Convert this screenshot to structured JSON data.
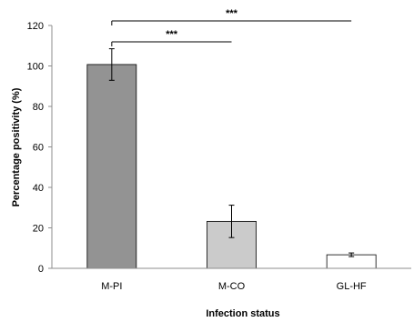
{
  "chart_data": {
    "type": "bar",
    "title": "",
    "xlabel": "Infection status",
    "ylabel": "Percentage positivity (%)",
    "ylim": [
      0,
      120
    ],
    "yticks": [
      0,
      20,
      40,
      60,
      80,
      100,
      120
    ],
    "grid": false,
    "legend": "none",
    "categories": [
      "M-PI",
      "M-CO",
      "GL-HF"
    ],
    "values": [
      100.7,
      23.2,
      6.7
    ],
    "error": [
      7.8,
      8.0,
      0.9
    ],
    "colors": [
      "#939393",
      "#cbcbcb",
      "#ffffff"
    ],
    "significance": [
      {
        "from": "M-PI",
        "to": "M-CO",
        "label": "***"
      },
      {
        "from": "M-PI",
        "to": "GL-HF",
        "label": "***"
      }
    ]
  }
}
